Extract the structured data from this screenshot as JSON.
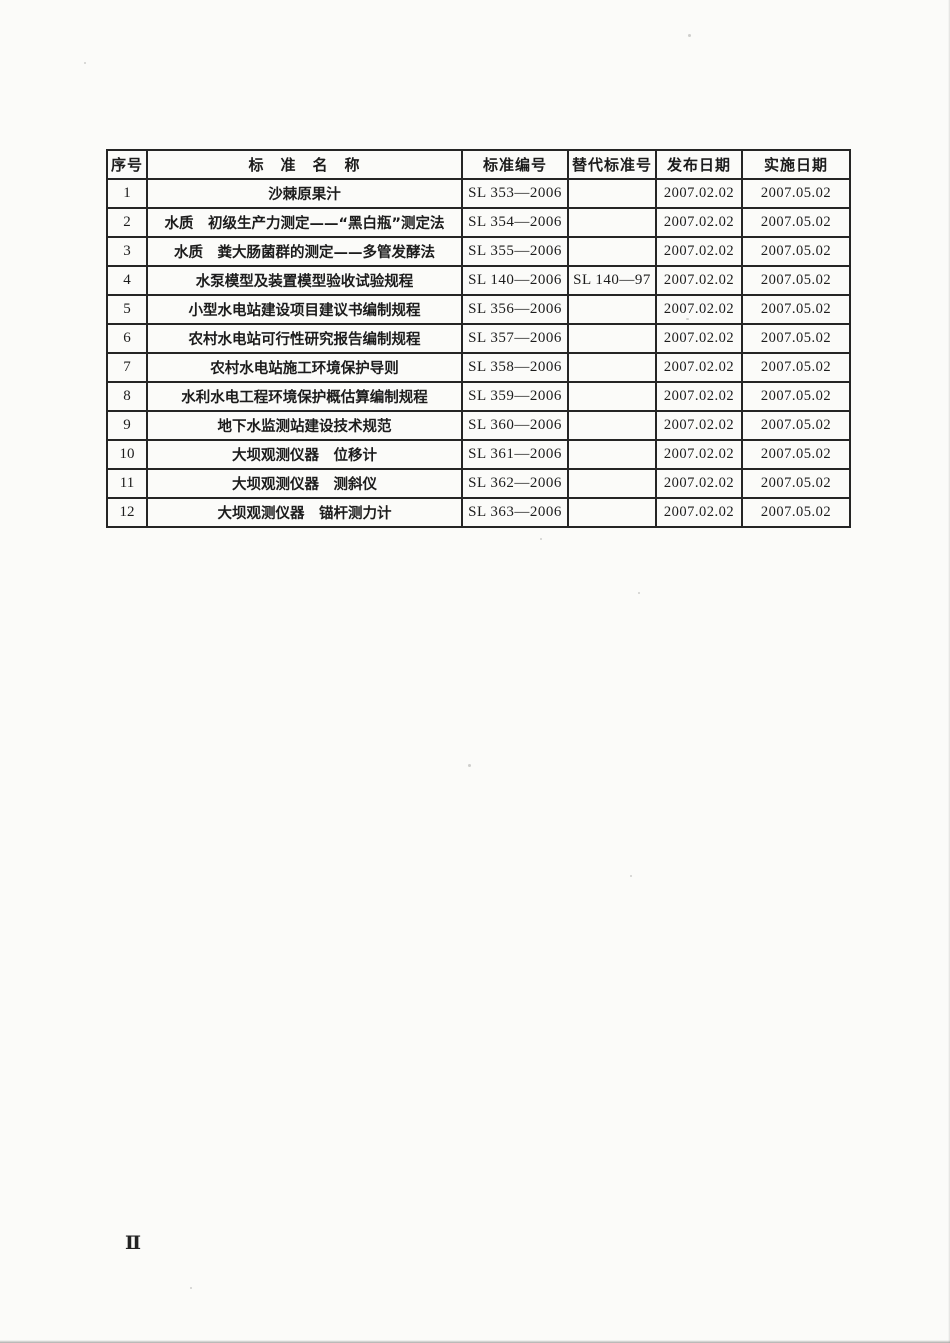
{
  "page": {
    "page_number": "Ⅱ"
  },
  "table": {
    "headers": {
      "index": "序号",
      "name": "标　准　名　称",
      "code": "标准编号",
      "superseded": "替代标准号",
      "issued": "发布日期",
      "effective": "实施日期"
    },
    "rows": [
      {
        "index": "1",
        "name": "沙棘原果汁",
        "code": "SL 353—2006",
        "superseded": "",
        "issued": "2007.02.02",
        "effective": "2007.05.02"
      },
      {
        "index": "2",
        "name": "水质　初级生产力测定——“黑白瓶”测定法",
        "code": "SL 354—2006",
        "superseded": "",
        "issued": "2007.02.02",
        "effective": "2007.05.02"
      },
      {
        "index": "3",
        "name": "水质　粪大肠菌群的测定——多管发酵法",
        "code": "SL 355—2006",
        "superseded": "",
        "issued": "2007.02.02",
        "effective": "2007.05.02"
      },
      {
        "index": "4",
        "name": "水泵模型及装置模型验收试验规程",
        "code": "SL 140—2006",
        "superseded": "SL 140—97",
        "issued": "2007.02.02",
        "effective": "2007.05.02"
      },
      {
        "index": "5",
        "name": "小型水电站建设项目建议书编制规程",
        "code": "SL 356—2006",
        "superseded": "",
        "issued": "2007.02.02",
        "effective": "2007.05.02"
      },
      {
        "index": "6",
        "name": "农村水电站可行性研究报告编制规程",
        "code": "SL 357—2006",
        "superseded": "",
        "issued": "2007.02.02",
        "effective": "2007.05.02"
      },
      {
        "index": "7",
        "name": "农村水电站施工环境保护导则",
        "code": "SL 358—2006",
        "superseded": "",
        "issued": "2007.02.02",
        "effective": "2007.05.02"
      },
      {
        "index": "8",
        "name": "水利水电工程环境保护概估算编制规程",
        "code": "SL 359—2006",
        "superseded": "",
        "issued": "2007.02.02",
        "effective": "2007.05.02"
      },
      {
        "index": "9",
        "name": "地下水监测站建设技术规范",
        "code": "SL 360—2006",
        "superseded": "",
        "issued": "2007.02.02",
        "effective": "2007.05.02"
      },
      {
        "index": "10",
        "name": "大坝观测仪器　位移计",
        "code": "SL 361—2006",
        "superseded": "",
        "issued": "2007.02.02",
        "effective": "2007.05.02"
      },
      {
        "index": "11",
        "name": "大坝观测仪器　测斜仪",
        "code": "SL 362—2006",
        "superseded": "",
        "issued": "2007.02.02",
        "effective": "2007.05.02"
      },
      {
        "index": "12",
        "name": "大坝观测仪器　锚杆测力计",
        "code": "SL 363—2006",
        "superseded": "",
        "issued": "2007.02.02",
        "effective": "2007.05.02"
      }
    ]
  }
}
